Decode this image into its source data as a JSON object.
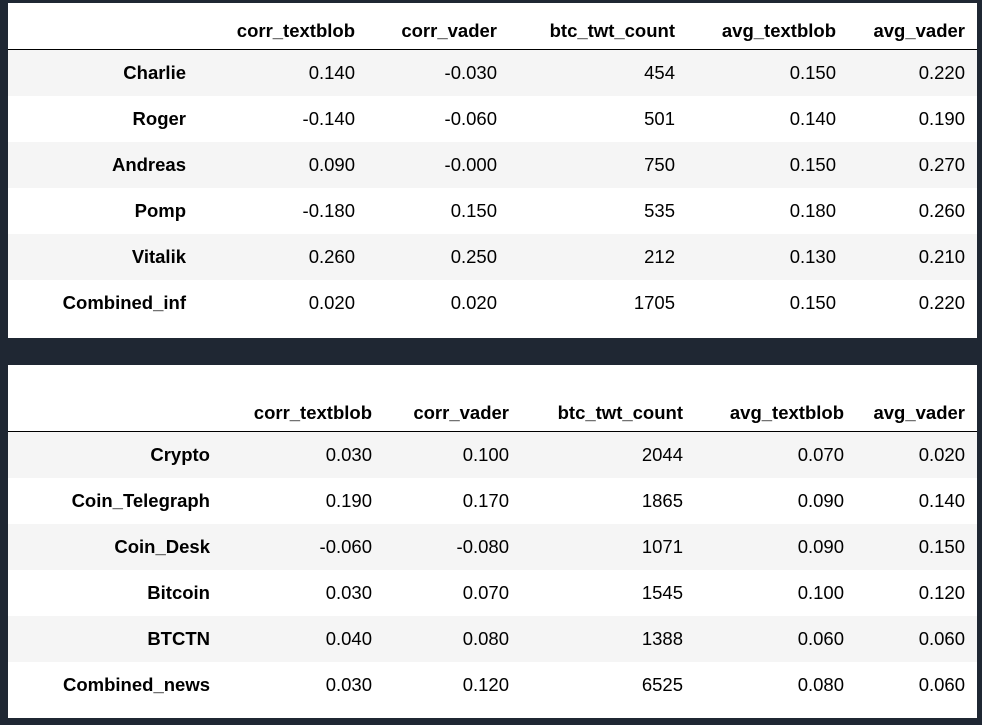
{
  "tables": [
    {
      "columns": [
        "",
        "corr_textblob",
        "corr_vader",
        "btc_twt_count",
        "avg_textblob",
        "avg_vader"
      ],
      "rows": [
        {
          "label": "Charlie",
          "cells": [
            "0.140",
            "-0.030",
            "454",
            "0.150",
            "0.220"
          ]
        },
        {
          "label": "Roger",
          "cells": [
            "-0.140",
            "-0.060",
            "501",
            "0.140",
            "0.190"
          ]
        },
        {
          "label": "Andreas",
          "cells": [
            "0.090",
            "-0.000",
            "750",
            "0.150",
            "0.270"
          ]
        },
        {
          "label": "Pomp",
          "cells": [
            "-0.180",
            "0.150",
            "535",
            "0.180",
            "0.260"
          ]
        },
        {
          "label": "Vitalik",
          "cells": [
            "0.260",
            "0.250",
            "212",
            "0.130",
            "0.210"
          ]
        },
        {
          "label": "Combined_inf",
          "cells": [
            "0.020",
            "0.020",
            "1705",
            "0.150",
            "0.220"
          ]
        }
      ]
    },
    {
      "columns": [
        "",
        "corr_textblob",
        "corr_vader",
        "btc_twt_count",
        "avg_textblob",
        "avg_vader"
      ],
      "rows": [
        {
          "label": "Crypto",
          "cells": [
            "0.030",
            "0.100",
            "2044",
            "0.070",
            "0.020"
          ]
        },
        {
          "label": "Coin_Telegraph",
          "cells": [
            "0.190",
            "0.170",
            "1865",
            "0.090",
            "0.140"
          ]
        },
        {
          "label": "Coin_Desk",
          "cells": [
            "-0.060",
            "-0.080",
            "1071",
            "0.090",
            "0.150"
          ]
        },
        {
          "label": "Bitcoin",
          "cells": [
            "0.030",
            "0.070",
            "1545",
            "0.100",
            "0.120"
          ]
        },
        {
          "label": "BTCTN",
          "cells": [
            "0.040",
            "0.080",
            "1388",
            "0.060",
            "0.060"
          ]
        },
        {
          "label": "Combined_news",
          "cells": [
            "0.030",
            "0.120",
            "6525",
            "0.080",
            "0.060"
          ]
        }
      ]
    }
  ],
  "colors": {
    "background": "#1f2733",
    "panel": "#ffffff",
    "stripe": "#f5f5f5",
    "text": "#000000"
  }
}
